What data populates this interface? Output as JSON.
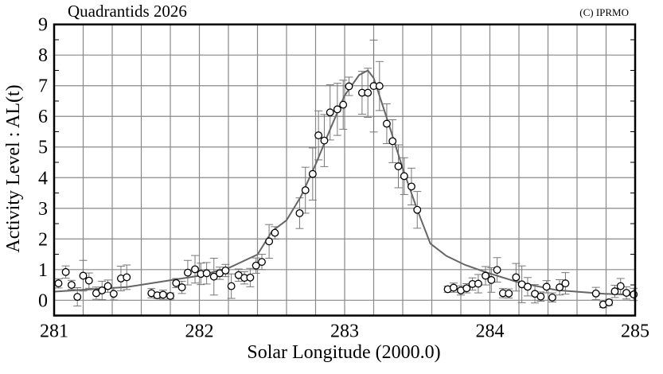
{
  "chart_data": {
    "type": "scatter",
    "title": "Quadrantids 2026",
    "copyright": "(C) IPRMO",
    "xlabel": "Solar Longitude (2000.0)",
    "ylabel": "Activity Level : AL(t)",
    "xlim": [
      281,
      285
    ],
    "ylim": [
      -0.5,
      9
    ],
    "xticks": [
      "281",
      "282",
      "283",
      "284",
      "285"
    ],
    "yticks": [
      "0",
      "1",
      "2",
      "3",
      "4",
      "5",
      "6",
      "7",
      "8",
      "9"
    ],
    "grid": true,
    "colors": {
      "points": "#ffffff",
      "point_edge": "#000000",
      "fit_line": "#666666",
      "error_bars": "#777777",
      "grid": "#888888"
    },
    "points": {
      "x": [
        281.03,
        281.08,
        281.12,
        281.16,
        281.2,
        281.24,
        281.29,
        281.33,
        281.37,
        281.41,
        281.46,
        281.5,
        281.67,
        281.71,
        281.75,
        281.8,
        281.84,
        281.88,
        281.92,
        281.97,
        282.01,
        282.05,
        282.1,
        282.14,
        282.18,
        282.22,
        282.27,
        282.31,
        282.35,
        282.39,
        282.43,
        282.48,
        282.52,
        282.69,
        282.73,
        282.78,
        282.82,
        282.86,
        282.9,
        282.95,
        282.99,
        283.03,
        283.12,
        283.16,
        283.2,
        283.24,
        283.29,
        283.33,
        283.37,
        283.41,
        283.46,
        283.5,
        283.71,
        283.75,
        283.8,
        283.84,
        283.88,
        283.92,
        283.97,
        284.01,
        284.05,
        284.09,
        284.13,
        284.18,
        284.22,
        284.26,
        284.31,
        284.35,
        284.39,
        284.43,
        284.48,
        284.52,
        284.73,
        284.78,
        284.82,
        284.86,
        284.9,
        284.94,
        284.99
      ],
      "y": [
        0.55,
        0.92,
        0.5,
        0.11,
        0.8,
        0.64,
        0.23,
        0.32,
        0.46,
        0.21,
        0.71,
        0.75,
        0.23,
        0.16,
        0.18,
        0.14,
        0.56,
        0.42,
        0.9,
        1.01,
        0.86,
        0.88,
        0.77,
        0.88,
        0.97,
        0.46,
        0.82,
        0.73,
        0.74,
        1.13,
        1.25,
        1.92,
        2.2,
        2.84,
        3.59,
        4.12,
        5.38,
        5.21,
        6.13,
        6.23,
        6.38,
        6.98,
        6.77,
        6.77,
        6.99,
        6.99,
        5.76,
        5.19,
        4.37,
        4.05,
        3.71,
        2.95,
        0.36,
        0.41,
        0.32,
        0.39,
        0.53,
        0.54,
        0.8,
        0.66,
        0.99,
        0.23,
        0.22,
        0.75,
        0.52,
        0.44,
        0.21,
        0.12,
        0.44,
        0.09,
        0.42,
        0.55,
        0.22,
        -0.14,
        -0.07,
        0.29,
        0.46,
        0.24,
        0.19
      ],
      "err": [
        0.15,
        0.2,
        0.15,
        0.3,
        0.5,
        0.25,
        0.2,
        0.3,
        0.2,
        0.2,
        0.4,
        0.4,
        0.15,
        0.1,
        0.15,
        0.1,
        0.15,
        0.2,
        0.4,
        0.45,
        0.35,
        0.35,
        0.6,
        0.2,
        0.2,
        0.4,
        0.2,
        0.2,
        0.3,
        0.25,
        0.25,
        0.55,
        0.2,
        0.5,
        0.75,
        0.85,
        0.8,
        0.85,
        0.9,
        0.85,
        0.8,
        0.3,
        0.7,
        0.8,
        1.5,
        0.8,
        0.65,
        0.7,
        0.7,
        0.6,
        0.6,
        0.6,
        0.1,
        0.15,
        0.15,
        0.15,
        0.2,
        0.3,
        0.3,
        0.4,
        0.4,
        0.15,
        0.15,
        0.45,
        0.6,
        0.3,
        0.3,
        0.15,
        0.2,
        0.15,
        0.25,
        0.35,
        0.2,
        0.1,
        0.1,
        0.2,
        0.25,
        0.2,
        0.2
      ]
    },
    "fit_line": {
      "x": [
        281.0,
        281.5,
        282.0,
        282.2,
        282.4,
        282.5,
        282.6,
        282.7,
        282.8,
        282.9,
        283.0,
        283.1,
        283.16,
        283.2,
        283.3,
        283.4,
        283.5,
        283.59,
        283.7,
        283.83,
        283.98,
        284.2,
        284.46,
        284.79,
        285.0
      ],
      "y": [
        0.28,
        0.43,
        0.8,
        1.05,
        1.49,
        2.25,
        2.61,
        3.39,
        4.43,
        5.57,
        6.68,
        7.35,
        7.5,
        7.25,
        5.8,
        4.3,
        2.95,
        1.85,
        1.45,
        1.15,
        0.9,
        0.58,
        0.33,
        0.21,
        0.17
      ]
    }
  }
}
